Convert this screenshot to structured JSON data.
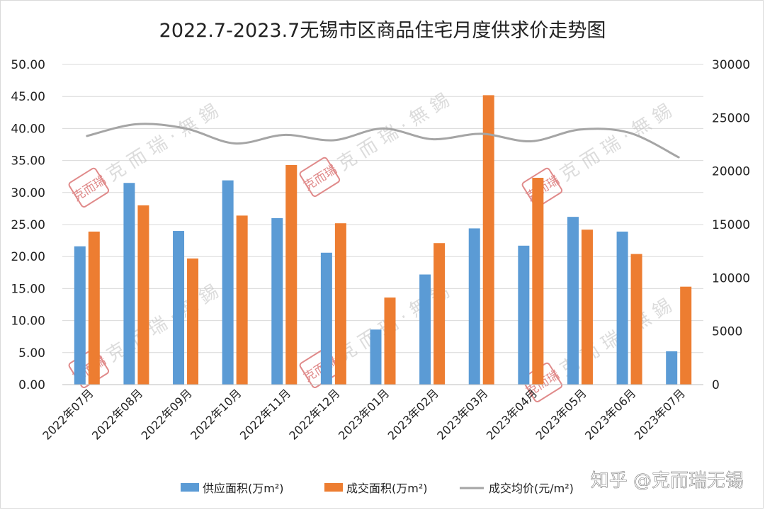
{
  "chart_data": {
    "type": "bar",
    "title": "2022.7-2023.7无锡市区商品住宅月度供求价走势图",
    "categories": [
      "2022年07月",
      "2022年08月",
      "2022年09月",
      "2022年10月",
      "2022年11月",
      "2022年12月",
      "2023年01月",
      "2023年02月",
      "2023年03月",
      "2023年04月",
      "2023年05月",
      "2023年06月",
      "2023年07月"
    ],
    "series": [
      {
        "name": "供应面积(万m²)",
        "type": "bar",
        "axis": "left",
        "color": "#5b9bd5",
        "values": [
          21.6,
          31.5,
          24.0,
          31.9,
          26.0,
          20.6,
          8.6,
          17.2,
          24.4,
          21.7,
          26.2,
          23.9,
          5.2
        ]
      },
      {
        "name": "成交面积(万m²)",
        "type": "bar",
        "axis": "left",
        "color": "#ed7d31",
        "values": [
          23.9,
          28.0,
          19.7,
          26.4,
          34.3,
          25.2,
          13.6,
          22.1,
          45.2,
          32.3,
          24.2,
          20.4,
          15.3
        ]
      },
      {
        "name": "成交均价(元/m²)",
        "type": "line",
        "axis": "right",
        "color": "#a5a5a5",
        "values": [
          23300,
          24400,
          24000,
          22600,
          23400,
          22900,
          24000,
          23000,
          23500,
          22800,
          23900,
          23600,
          21300
        ]
      }
    ],
    "y_left": {
      "min": 0,
      "max": 50,
      "ticks": [
        "0.00",
        "5.00",
        "10.00",
        "15.00",
        "20.00",
        "25.00",
        "30.00",
        "35.00",
        "40.00",
        "45.00",
        "50.00"
      ]
    },
    "y_right": {
      "min": 0,
      "max": 30000,
      "ticks": [
        "0",
        "5000",
        "10000",
        "15000",
        "20000",
        "25000",
        "30000"
      ]
    },
    "grid": true,
    "legend_position": "bottom"
  },
  "watermark": {
    "brand": "克 而 瑞 · 無 錫",
    "seal": "克而瑞",
    "footer": "知乎 @克而瑞无锡"
  }
}
